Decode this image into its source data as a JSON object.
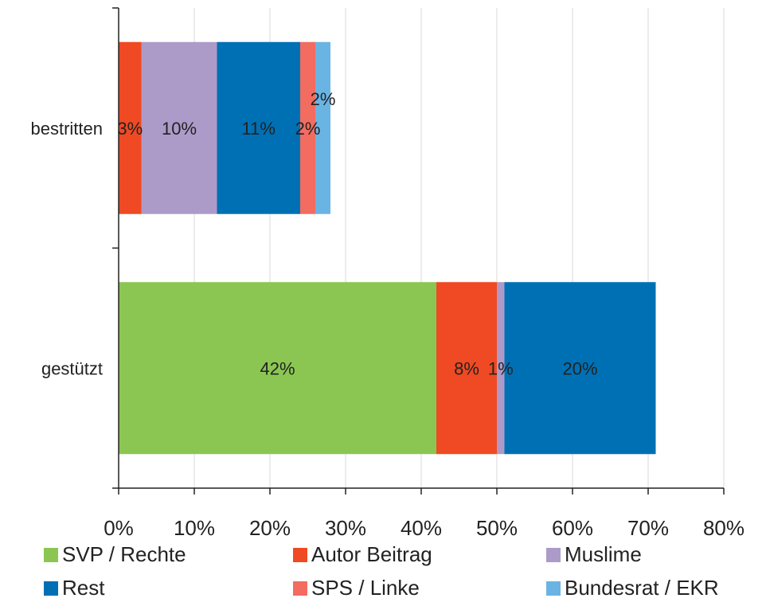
{
  "chart_data": {
    "type": "bar",
    "orientation": "horizontal",
    "stacked": true,
    "title": "",
    "xlabel": "",
    "ylabel": "",
    "xlim": [
      0,
      80
    ],
    "x_tick_labels": [
      "0%",
      "10%",
      "20%",
      "30%",
      "40%",
      "50%",
      "60%",
      "70%",
      "80%"
    ],
    "grid": true,
    "legend_position": "bottom",
    "categories": [
      "bestritten",
      "gestützt"
    ],
    "series": [
      {
        "name": "SVP / Rechte",
        "color": "#8BC653",
        "values": [
          0,
          42
        ],
        "labels": [
          "",
          "42%"
        ]
      },
      {
        "name": "Autor Beitrag",
        "color": "#EF4A23",
        "values": [
          3,
          8
        ],
        "labels": [
          "3%",
          "8%"
        ]
      },
      {
        "name": "Muslime",
        "color": "#AC9BC9",
        "values": [
          10,
          1
        ],
        "labels": [
          "10%",
          "1%"
        ]
      },
      {
        "name": "Rest",
        "color": "#0070B4",
        "values": [
          11,
          20
        ],
        "labels": [
          "11%",
          "20%"
        ]
      },
      {
        "name": "SPS / Linke",
        "color": "#F26C60",
        "values": [
          2,
          0
        ],
        "labels": [
          "2%",
          ""
        ]
      },
      {
        "name": "Bundesrat / EKR",
        "color": "#6AB4E3",
        "values": [
          2,
          0
        ],
        "labels": [
          "2%",
          ""
        ]
      }
    ]
  }
}
